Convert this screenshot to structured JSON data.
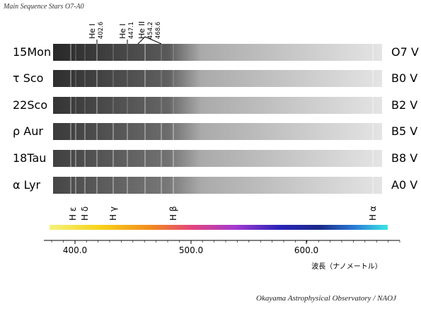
{
  "title": "Main Sequence Stars O7-A0",
  "stars": [
    {
      "name": "15Mon",
      "class": "O7 V"
    },
    {
      "name": "τ Sco",
      "class": "B0 V"
    },
    {
      "name": "22Sco",
      "class": "B2 V"
    },
    {
      "name": "ρ Aur",
      "class": "B5 V"
    },
    {
      "name": "18Tau",
      "class": "B8 V"
    },
    {
      "name": "α Lyr",
      "class": "A0 V"
    }
  ],
  "top_lines": [
    {
      "label": "He I",
      "wavelengths": [
        "402.6"
      ]
    },
    {
      "label": "He I",
      "wavelengths": [
        "447.1"
      ]
    },
    {
      "label": "He II",
      "wavelengths": [
        "454.2",
        "468.6"
      ]
    }
  ],
  "bottom_lines": [
    "H ε",
    "H δ",
    "H γ",
    "H β",
    "H α"
  ],
  "axis": {
    "ticks": [
      "400.0",
      "500.0",
      "600.0"
    ],
    "label": "波長（ナノメートル）"
  },
  "credit": "Okayama Astrophysical Observatory / NAOJ"
}
